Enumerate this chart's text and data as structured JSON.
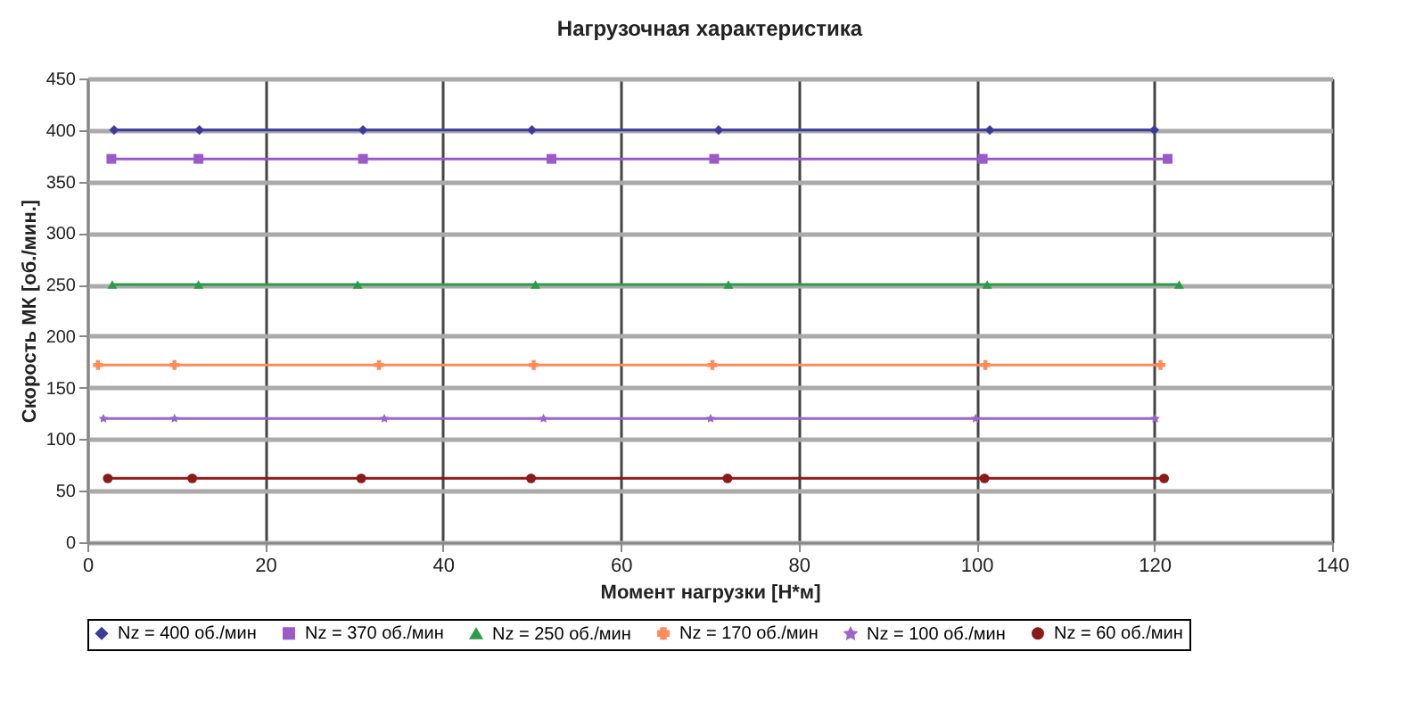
{
  "chart_data": {
    "type": "line",
    "title": "Нагрузочная характеристика",
    "xlabel": "Момент нагрузки [Н*м]",
    "ylabel": "Скорость МК [об./мин.]",
    "xlim": [
      0,
      140
    ],
    "xticks": [
      0,
      20,
      40,
      60,
      80,
      100,
      120,
      140
    ],
    "ylim": [
      0,
      450
    ],
    "yticks": [
      0,
      50,
      100,
      150,
      200,
      250,
      300,
      350,
      400,
      450
    ],
    "grid": true,
    "legend": "bottom",
    "line_style": "solid",
    "series": [
      {
        "name": "Nz = 400 об./мин",
        "color": "#3b3b9b",
        "marker": "diamond",
        "x": [
          3,
          12.6,
          31,
          50,
          71,
          101.5,
          120
        ],
        "values": [
          400,
          400,
          400,
          400,
          400,
          400,
          400
        ]
      },
      {
        "name": "Nz = 370 об./мин",
        "color": "#9b59c9",
        "marker": "square",
        "x": [
          2.7,
          12.5,
          31,
          52.2,
          70.5,
          100.7,
          121.5
        ],
        "values": [
          372,
          372,
          372,
          372,
          372,
          372,
          372
        ]
      },
      {
        "name": "Nz = 250 об./мин",
        "color": "#2e9b4a",
        "marker": "triangle",
        "x": [
          2.8,
          12.5,
          30.4,
          50.4,
          72.1,
          101.2,
          122.8
        ],
        "values": [
          250,
          250,
          250,
          250,
          250,
          250,
          250
        ]
      },
      {
        "name": "Nz = 170 об./мин",
        "color": "#ff8c5a",
        "marker": "cross",
        "x": [
          1.2,
          9.8,
          32.8,
          50.2,
          70.3,
          101,
          120.7
        ],
        "values": [
          172,
          172,
          172,
          172,
          172,
          172,
          172
        ]
      },
      {
        "name": "Nz = 100 об./мин",
        "color": "#9966cc",
        "marker": "star",
        "x": [
          1.8,
          9.8,
          33.4,
          51.3,
          70.1,
          99.9,
          120.1
        ],
        "values": [
          120,
          120,
          120,
          120,
          120,
          120,
          120
        ]
      },
      {
        "name": "Nz = 60 об./мин",
        "color": "#8b1a1a",
        "marker": "circle",
        "x": [
          2.3,
          11.8,
          30.8,
          49.9,
          72,
          100.9,
          121.1
        ],
        "values": [
          62,
          62,
          62,
          62,
          62,
          62,
          62
        ]
      }
    ]
  }
}
